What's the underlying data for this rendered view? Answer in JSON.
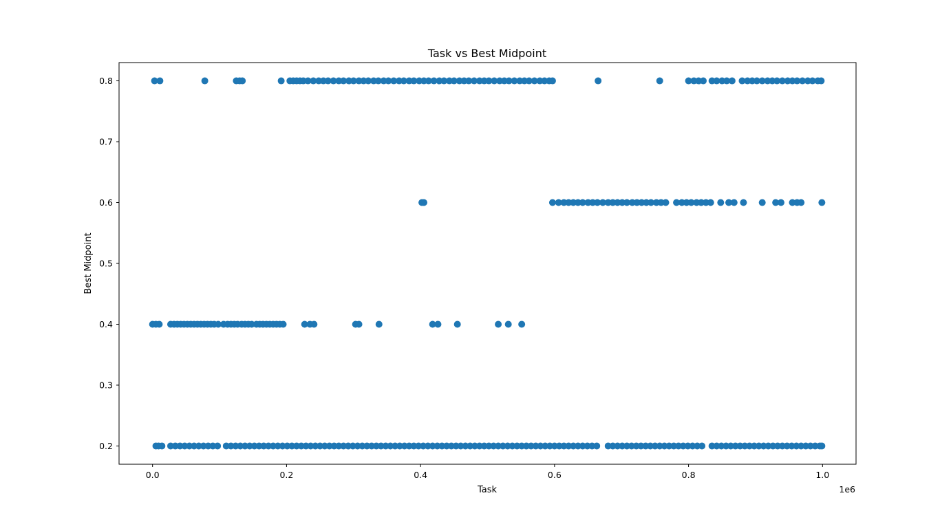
{
  "chart_data": {
    "type": "scatter",
    "title": "Task vs Best Midpoint",
    "xlabel": "Task",
    "ylabel": "Best Midpoint",
    "x_offset_label": "1e6",
    "xlim": [
      -50000,
      1050000
    ],
    "ylim": [
      0.17,
      0.83
    ],
    "x_ticks": [
      0,
      200000,
      400000,
      600000,
      800000,
      1000000
    ],
    "x_tick_labels": [
      "0.0",
      "0.2",
      "0.4",
      "0.6",
      "0.8",
      "1.0"
    ],
    "y_ticks": [
      0.2,
      0.3,
      0.4,
      0.5,
      0.6,
      0.7,
      0.8
    ],
    "y_tick_labels": [
      "0.2",
      "0.3",
      "0.4",
      "0.5",
      "0.6",
      "0.7",
      "0.8"
    ],
    "grid": false,
    "marker_color": "#1f77b4",
    "series": [
      {
        "values_by_level": [
          {
            "y": 0.8,
            "x": [
              3000,
              11000,
              78000,
              125000,
              130000,
              134000,
              192000,
              205000,
              210000,
              215000,
              220000,
              225000,
              232000,
              240000,
              248000,
              255000,
              262000,
              270000,
              278000,
              285000,
              293000,
              300000,
              308000,
              315000,
              322000,
              330000,
              337000,
              345000,
              352000,
              360000,
              368000,
              375000,
              383000,
              390000,
              398000,
              405000,
              412000,
              420000,
              428000,
              435000,
              443000,
              450000,
              458000,
              465000,
              472000,
              480000,
              488000,
              495000,
              502000,
              510000,
              518000,
              525000,
              532000,
              540000,
              548000,
              555000,
              562000,
              570000,
              578000,
              585000,
              592000,
              597000,
              665000,
              757000,
              800000,
              808000,
              815000,
              822000,
              835000,
              842000,
              850000,
              857000,
              865000,
              880000,
              888000,
              895000,
              902000,
              910000,
              918000,
              925000,
              932000,
              940000,
              948000,
              955000,
              962000,
              970000,
              978000,
              985000,
              993000,
              998000
            ]
          },
          {
            "y": 0.6,
            "x": [
              402000,
              405000,
              597000,
              606000,
              614000,
              621000,
              628000,
              635000,
              642000,
              650000,
              657000,
              664000,
              672000,
              680000,
              687000,
              694000,
              701000,
              708000,
              716000,
              723000,
              730000,
              737000,
              744000,
              752000,
              759000,
              766000,
              782000,
              790000,
              797000,
              804000,
              812000,
              819000,
              826000,
              833000,
              848000,
              860000,
              868000,
              882000,
              910000,
              930000,
              938000,
              955000,
              962000,
              968000,
              999000
            ]
          },
          {
            "y": 0.4,
            "x": [
              0,
              5000,
              10000,
              27000,
              32000,
              37000,
              42000,
              47000,
              52000,
              57000,
              62000,
              67000,
              72000,
              77000,
              82000,
              87000,
              92000,
              98000,
              106000,
              112000,
              117000,
              122000,
              127000,
              133000,
              138000,
              143000,
              148000,
              155000,
              160000,
              165000,
              170000,
              175000,
              180000,
              185000,
              190000,
              195000,
              227000,
              235000,
              241000,
              303000,
              308000,
              338000,
              418000,
              426000,
              455000,
              516000,
              531000,
              551000
            ]
          },
          {
            "y": 0.2,
            "x": [
              5000,
              9000,
              14000,
              27000,
              34000,
              41000,
              48000,
              55000,
              62000,
              69000,
              76000,
              83000,
              90000,
              97000,
              110000,
              117000,
              124000,
              131000,
              138000,
              145000,
              152000,
              159000,
              166000,
              173000,
              180000,
              187000,
              194000,
              201000,
              208000,
              215000,
              222000,
              229000,
              236000,
              243000,
              250000,
              257000,
              264000,
              271000,
              278000,
              285000,
              292000,
              299000,
              306000,
              313000,
              320000,
              327000,
              334000,
              341000,
              348000,
              355000,
              362000,
              369000,
              376000,
              383000,
              390000,
              397000,
              404000,
              411000,
              418000,
              425000,
              432000,
              439000,
              446000,
              453000,
              460000,
              467000,
              474000,
              481000,
              488000,
              495000,
              502000,
              509000,
              516000,
              523000,
              530000,
              537000,
              544000,
              551000,
              558000,
              565000,
              572000,
              579000,
              586000,
              593000,
              600000,
              607000,
              614000,
              621000,
              628000,
              635000,
              642000,
              649000,
              656000,
              663000,
              680000,
              687000,
              694000,
              701000,
              708000,
              715000,
              722000,
              729000,
              736000,
              743000,
              750000,
              757000,
              764000,
              771000,
              778000,
              785000,
              792000,
              799000,
              806000,
              813000,
              820000,
              835000,
              842000,
              849000,
              856000,
              863000,
              870000,
              877000,
              884000,
              891000,
              898000,
              905000,
              912000,
              919000,
              926000,
              933000,
              940000,
              947000,
              954000,
              961000,
              968000,
              975000,
              982000,
              989000,
              996000,
              999000
            ]
          }
        ]
      }
    ]
  }
}
